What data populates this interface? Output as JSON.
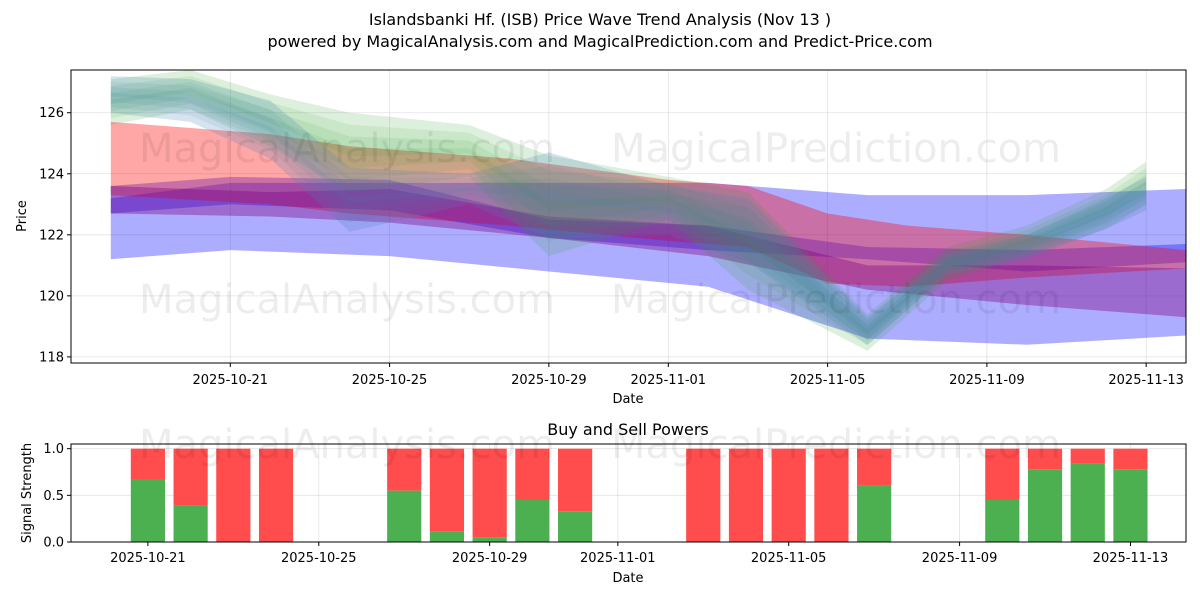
{
  "header": {
    "title": "Islandsbanki Hf. (ISB) Price Wave Trend Analysis (Nov 13 )",
    "subtitle": "powered by MagicalAnalysis.com and MagicalPrediction.com and Predict-Price.com"
  },
  "watermarks": [
    "MagicalAnalysis.com",
    "MagicalPrediction.com"
  ],
  "colors": {
    "blue_band": "#0000ff",
    "red_band": "#ff0000",
    "purple_band": "#800080",
    "green_band": "#2ca02c",
    "steel_band": "#4682b4",
    "buy": "#4caf50",
    "sell": "#ff4c4c"
  },
  "chart_data": [
    {
      "type": "area",
      "title": "",
      "xlabel": "Date",
      "ylabel": "Price",
      "ylim": [
        117.8,
        127.4
      ],
      "x_range": [
        "2025-10-17",
        "2025-11-14"
      ],
      "grid": true,
      "x_ticks": [
        "2025-10-21",
        "2025-10-25",
        "2025-10-29",
        "2025-11-01",
        "2025-11-05",
        "2025-11-09",
        "2025-11-13"
      ],
      "y_ticks": [
        118,
        120,
        122,
        124,
        126
      ],
      "series": [
        {
          "name": "blue wide band",
          "color": "#0000ff",
          "x": [
            "2025-10-18",
            "2025-10-21",
            "2025-10-25",
            "2025-10-29",
            "2025-11-02",
            "2025-11-06",
            "2025-11-10",
            "2025-11-14"
          ],
          "upper": [
            123.2,
            123.7,
            123.7,
            123.7,
            123.7,
            123.3,
            123.3,
            123.5
          ],
          "lower": [
            121.2,
            121.5,
            121.3,
            120.8,
            120.3,
            118.6,
            118.4,
            118.7
          ]
        },
        {
          "name": "blue narrow band",
          "color": "#0000ff",
          "x": [
            "2025-10-18",
            "2025-10-21",
            "2025-10-25",
            "2025-10-29",
            "2025-11-02",
            "2025-11-06",
            "2025-11-10",
            "2025-11-14"
          ],
          "upper": [
            123.6,
            123.9,
            123.8,
            122.5,
            122.3,
            121.6,
            121.5,
            121.7
          ],
          "lower": [
            122.7,
            123.0,
            122.8,
            121.9,
            121.5,
            121.2,
            120.8,
            121.1
          ]
        },
        {
          "name": "red band",
          "color": "#ff0000",
          "x": [
            "2025-10-18",
            "2025-10-22",
            "2025-10-24",
            "2025-10-28",
            "2025-11-01",
            "2025-11-03",
            "2025-11-05",
            "2025-11-07",
            "2025-11-10",
            "2025-11-14"
          ],
          "upper": [
            125.7,
            125.3,
            124.9,
            124.5,
            123.8,
            123.6,
            122.7,
            122.3,
            122.0,
            121.5
          ],
          "lower": [
            123.3,
            123.0,
            122.7,
            122.3,
            121.8,
            121.6,
            120.4,
            120.3,
            120.6,
            120.9
          ]
        },
        {
          "name": "purple band",
          "color": "#800080",
          "x": [
            "2025-10-18",
            "2025-10-22",
            "2025-10-25",
            "2025-10-29",
            "2025-11-02",
            "2025-11-06",
            "2025-11-10",
            "2025-11-14"
          ],
          "upper": [
            123.6,
            123.4,
            123.5,
            122.6,
            122.3,
            121.0,
            121.0,
            120.9
          ],
          "lower": [
            122.7,
            122.6,
            122.4,
            121.9,
            121.3,
            120.2,
            119.7,
            119.3
          ]
        },
        {
          "name": "green band",
          "color": "#2ca02c",
          "x": [
            "2025-10-18",
            "2025-10-20",
            "2025-10-22",
            "2025-10-24",
            "2025-10-27",
            "2025-10-29",
            "2025-11-01",
            "2025-11-03",
            "2025-11-06",
            "2025-11-08",
            "2025-11-10",
            "2025-11-12",
            "2025-11-13"
          ],
          "upper": [
            127.1,
            127.4,
            126.6,
            126.0,
            125.6,
            124.6,
            123.9,
            123.4,
            119.4,
            121.6,
            122.3,
            123.5,
            124.4
          ],
          "lower": [
            125.6,
            126.1,
            124.9,
            123.4,
            123.9,
            121.3,
            122.5,
            120.2,
            118.2,
            120.5,
            121.3,
            122.2,
            123.0
          ]
        },
        {
          "name": "steel band",
          "color": "#4682b4",
          "x": [
            "2025-10-18",
            "2025-10-20",
            "2025-10-22",
            "2025-10-24",
            "2025-10-27",
            "2025-10-29",
            "2025-11-01",
            "2025-11-03",
            "2025-11-06",
            "2025-11-08",
            "2025-11-10",
            "2025-11-12",
            "2025-11-13"
          ],
          "upper": [
            127.2,
            127.1,
            126.4,
            124.2,
            124.0,
            124.7,
            123.6,
            123.2,
            119.3,
            121.4,
            122.0,
            123.2,
            123.9
          ],
          "lower": [
            126.0,
            125.7,
            124.5,
            122.1,
            123.0,
            121.9,
            122.0,
            121.1,
            118.4,
            120.7,
            121.2,
            122.2,
            122.8
          ]
        }
      ]
    },
    {
      "type": "bar",
      "title": "Buy and Sell Powers",
      "xlabel": "Date",
      "ylabel": "Signal Strength",
      "ylim": [
        0,
        1.05
      ],
      "x_range": [
        "2025-10-19.2",
        "2025-11-14.3"
      ],
      "x_ticks": [
        "2025-10-21",
        "2025-10-25",
        "2025-10-29",
        "2025-11-01",
        "2025-11-05",
        "2025-11-09",
        "2025-11-13"
      ],
      "y_ticks": [
        "0.0",
        "0.5",
        "1.0"
      ],
      "categories": [
        "2025-10-21",
        "2025-10-22",
        "2025-10-23",
        "2025-10-24",
        "2025-10-27",
        "2025-10-28",
        "2025-10-29",
        "2025-10-30",
        "2025-10-31",
        "2025-11-03",
        "2025-11-04",
        "2025-11-05",
        "2025-11-06",
        "2025-11-07",
        "2025-11-10",
        "2025-11-11",
        "2025-11-12",
        "2025-11-13"
      ],
      "series": [
        {
          "name": "Buy",
          "color": "#4caf50",
          "values": [
            0.67,
            0.39,
            0,
            0,
            0.55,
            0.11,
            0.05,
            0.45,
            0.33,
            0,
            0,
            0,
            0,
            0.61,
            0.45,
            0.78,
            0.84,
            0.78
          ]
        },
        {
          "name": "Sell",
          "color": "#ff4c4c",
          "values": [
            0.33,
            0.61,
            1,
            1,
            0.45,
            0.89,
            0.95,
            0.55,
            0.67,
            1,
            1,
            1,
            1,
            0.39,
            0.55,
            0.22,
            0.16,
            0.22
          ]
        }
      ]
    }
  ]
}
